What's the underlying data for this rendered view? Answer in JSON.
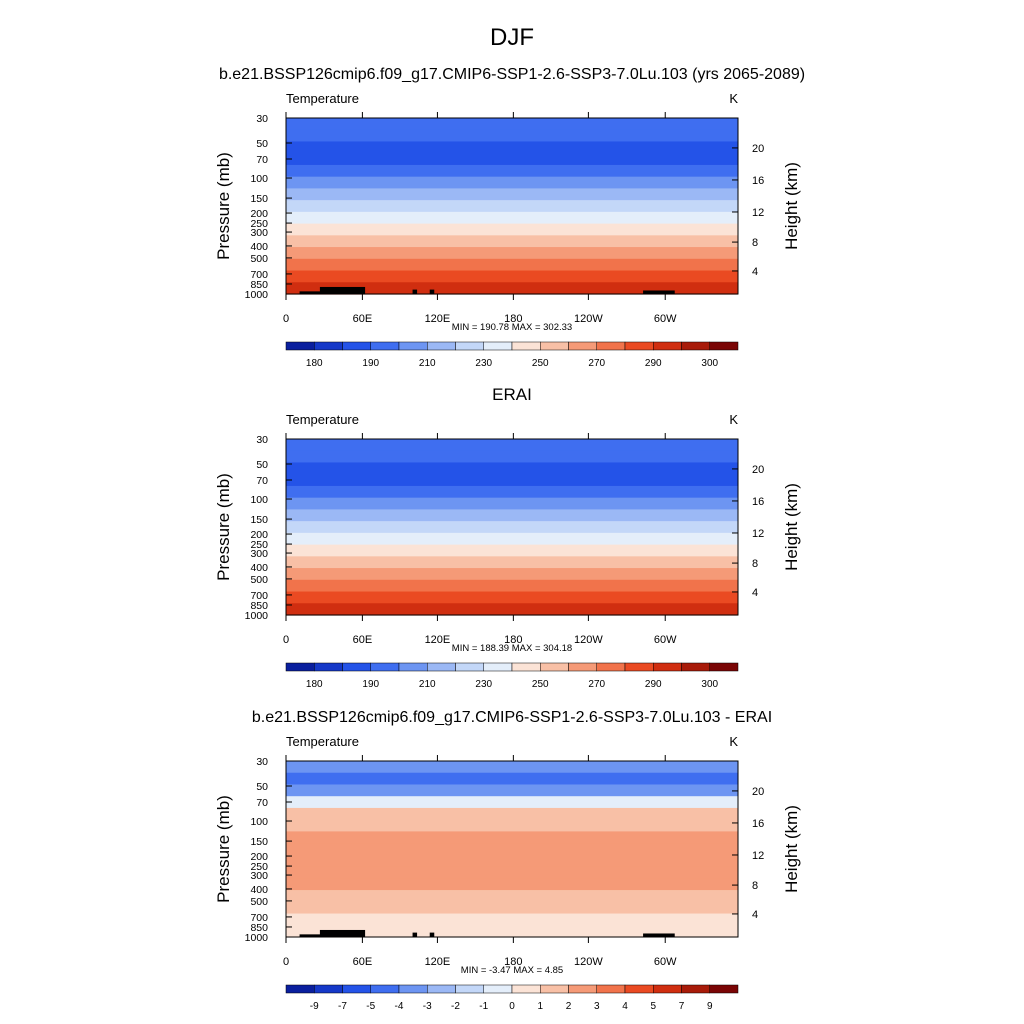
{
  "page_title": "DJF",
  "chart_data": [
    {
      "type": "contour",
      "title": "b.e21.BSSP126cmip6.f09_g17.CMIP6-SSP1-2.6-SSP3-7.0Lu.103 (yrs 2065-2089)",
      "left_label": "Temperature",
      "units": "K",
      "ylabel": "Pressure (mb)",
      "ylabel_right": "Height (km)",
      "y_ticks": [
        "30",
        "50",
        "70",
        "100",
        "150",
        "200",
        "250",
        "300",
        "400",
        "500",
        "700",
        "850",
        "1000"
      ],
      "right_ticks": [
        "20",
        "16",
        "12",
        "8",
        "4"
      ],
      "x_ticks": [
        "0",
        "60E",
        "120E",
        "180",
        "120W",
        "60W"
      ],
      "stats": "MIN = 190.78  MAX = 302.33",
      "colorbar_labels": [
        "180",
        "190",
        "210",
        "230",
        "250",
        "270",
        "290",
        "300"
      ],
      "colors": [
        "#0a1f9e",
        "#1538c8",
        "#2453e8",
        "#3f6ef0",
        "#6d95f2",
        "#9bb8f5",
        "#c3d7f8",
        "#e4eefa",
        "#fbe3d6",
        "#f8c0a6",
        "#f59a77",
        "#f1734b",
        "#ea4a22",
        "#d02e10",
        "#a81b09",
        "#7a0505"
      ],
      "band_indices": [
        3,
        3,
        2,
        2,
        3,
        4,
        5,
        6,
        7,
        8,
        9,
        10,
        11,
        12,
        13
      ]
    },
    {
      "type": "contour",
      "title": "ERAI",
      "left_label": "Temperature",
      "units": "K",
      "ylabel": "Pressure (mb)",
      "ylabel_right": "Height (km)",
      "y_ticks": [
        "30",
        "50",
        "70",
        "100",
        "150",
        "200",
        "250",
        "300",
        "400",
        "500",
        "700",
        "850",
        "1000"
      ],
      "right_ticks": [
        "20",
        "16",
        "12",
        "8",
        "4"
      ],
      "x_ticks": [
        "0",
        "60E",
        "120E",
        "180",
        "120W",
        "60W"
      ],
      "stats": "MIN = 188.39  MAX = 304.18",
      "colorbar_labels": [
        "180",
        "190",
        "210",
        "230",
        "250",
        "270",
        "290",
        "300"
      ],
      "colors": [
        "#0a1f9e",
        "#1538c8",
        "#2453e8",
        "#3f6ef0",
        "#6d95f2",
        "#9bb8f5",
        "#c3d7f8",
        "#e4eefa",
        "#fbe3d6",
        "#f8c0a6",
        "#f59a77",
        "#f1734b",
        "#ea4a22",
        "#d02e10",
        "#a81b09",
        "#7a0505"
      ],
      "band_indices": [
        3,
        3,
        2,
        2,
        3,
        4,
        5,
        6,
        7,
        8,
        9,
        10,
        11,
        12,
        13
      ]
    },
    {
      "type": "contour",
      "title": "b.e21.BSSP126cmip6.f09_g17.CMIP6-SSP1-2.6-SSP3-7.0Lu.103 - ERAI",
      "left_label": "Temperature",
      "units": "K",
      "ylabel": "Pressure (mb)",
      "ylabel_right": "Height (km)",
      "y_ticks": [
        "30",
        "50",
        "70",
        "100",
        "150",
        "200",
        "250",
        "300",
        "400",
        "500",
        "700",
        "850",
        "1000"
      ],
      "right_ticks": [
        "20",
        "16",
        "12",
        "8",
        "4"
      ],
      "x_ticks": [
        "0",
        "60E",
        "120E",
        "180",
        "120W",
        "60W"
      ],
      "stats": "MIN =  -3.47  MAX =   4.85",
      "colorbar_labels": [
        "-9",
        "-7",
        "-5",
        "-4",
        "-3",
        "-2",
        "-1",
        "0",
        "1",
        "2",
        "3",
        "4",
        "5",
        "7",
        "9"
      ],
      "colors": [
        "#0a1f9e",
        "#1538c8",
        "#2453e8",
        "#3f6ef0",
        "#6d95f2",
        "#9bb8f5",
        "#c3d7f8",
        "#e4eefa",
        "#fbe3d6",
        "#f8c0a6",
        "#f59a77",
        "#f1734b",
        "#ea4a22",
        "#d02e10",
        "#a81b09",
        "#7a0505"
      ],
      "band_indices": [
        4,
        3,
        4,
        7,
        9,
        9,
        10,
        10,
        10,
        10,
        10,
        9,
        9,
        8,
        8
      ]
    }
  ]
}
